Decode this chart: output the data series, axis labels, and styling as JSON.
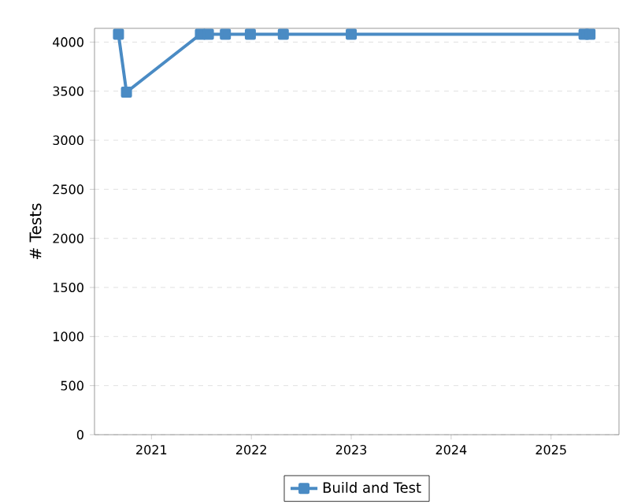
{
  "chart_data": {
    "type": "line",
    "ylabel": "# Tests",
    "series": [
      {
        "name": "Build and Test",
        "color": "#4a8bc4",
        "x": [
          2020.67,
          2020.75,
          2021.49,
          2021.57,
          2021.74,
          2021.99,
          2022.32,
          2023.0,
          2025.33,
          2025.39
        ],
        "values": [
          4080,
          3490,
          4080,
          4080,
          4080,
          4080,
          4080,
          4080,
          4080,
          4080
        ]
      }
    ],
    "xlim": [
      2020.43,
      2025.68
    ],
    "xticks": [
      2021,
      2022,
      2023,
      2024,
      2025
    ],
    "ylim": [
      0,
      4140
    ],
    "yticks": [
      0,
      500,
      1000,
      1500,
      2000,
      2500,
      3000,
      3500,
      4000
    ],
    "grid": "y",
    "legend": "bottom",
    "marker": "square",
    "line_style": "solid"
  }
}
